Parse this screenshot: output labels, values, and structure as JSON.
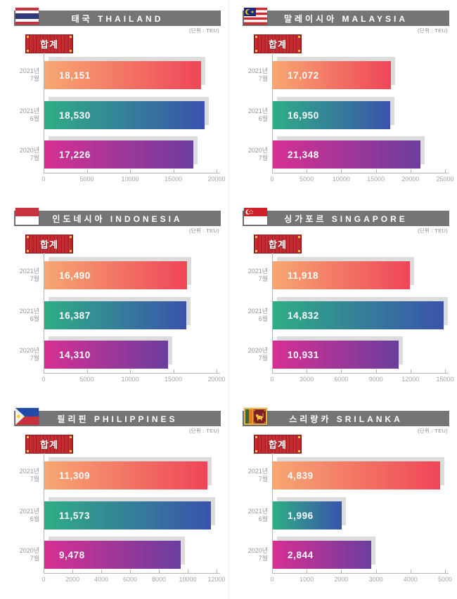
{
  "unit_label": "(단위 : TEU)",
  "total_badge_label": "합계",
  "colors": {
    "title_bar_bg": "#757575",
    "title_text": "#ffffff",
    "badge_bg": "#c1272d",
    "badge_border": "#8e1b20",
    "badge_corner_dot": "#f2c14b",
    "bar_shadow": "#dcdcdc",
    "axis_line": "#b5b5b5",
    "tick_label_text": "#a5a5a5",
    "category_label_text": "#969696",
    "value_text": "#ffffff"
  },
  "bar_gradients": [
    {
      "period": "2021-07",
      "from": "#f7a772",
      "to": "#ef4558"
    },
    {
      "period": "2021-06",
      "from": "#2fae85",
      "to": "#3a53ac"
    },
    {
      "period": "2020-07",
      "from": "#d72f92",
      "to": "#6b3e9e"
    }
  ],
  "row_labels": [
    {
      "line1": "2021년",
      "line2": "7월"
    },
    {
      "line1": "2021년",
      "line2": "6월"
    },
    {
      "line1": "2020년",
      "line2": "7월"
    }
  ],
  "chart_data": [
    {
      "type": "bar",
      "orientation": "horizontal",
      "title": "태국 THAILAND",
      "title_ko": "태국",
      "title_en": "THAILAND",
      "flag": "thailand",
      "categories": [
        "2021년 7월",
        "2021년 6월",
        "2020년 7월"
      ],
      "values": [
        18151,
        18530,
        17226
      ],
      "value_labels": [
        "18,151",
        "18,530",
        "17,226"
      ],
      "xlim": [
        0,
        20000
      ],
      "ticks": [
        0,
        5000,
        10000,
        15000,
        20000
      ],
      "tick_labels": [
        "0",
        "5000",
        "10000",
        "15000",
        "20000"
      ]
    },
    {
      "type": "bar",
      "orientation": "horizontal",
      "title": "말레이시아 MALAYSIA",
      "title_ko": "말레이시아",
      "title_en": "MALAYSIA",
      "flag": "malaysia",
      "categories": [
        "2021년 7월",
        "2021년 6월",
        "2020년 7월"
      ],
      "values": [
        17072,
        16950,
        21348
      ],
      "value_labels": [
        "17,072",
        "16,950",
        "21,348"
      ],
      "xlim": [
        0,
        25000
      ],
      "ticks": [
        0,
        5000,
        10000,
        15000,
        20000,
        25000
      ],
      "tick_labels": [
        "0",
        "5000",
        "10000",
        "15000",
        "20000",
        "25000"
      ]
    },
    {
      "type": "bar",
      "orientation": "horizontal",
      "title": "인도네시아 INDONESIA",
      "title_ko": "인도네시아",
      "title_en": "INDONESIA",
      "flag": "indonesia",
      "categories": [
        "2021년 7월",
        "2021년 6월",
        "2020년 7월"
      ],
      "values": [
        16490,
        16387,
        14310
      ],
      "value_labels": [
        "16,490",
        "16,387",
        "14,310"
      ],
      "xlim": [
        0,
        20000
      ],
      "ticks": [
        0,
        5000,
        10000,
        15000,
        20000
      ],
      "tick_labels": [
        "0",
        "5000",
        "10000",
        "15000",
        "20000"
      ]
    },
    {
      "type": "bar",
      "orientation": "horizontal",
      "title": "싱가포르 SINGAPORE",
      "title_ko": "싱가포르",
      "title_en": "SINGAPORE",
      "flag": "singapore",
      "categories": [
        "2021년 7월",
        "2021년 6월",
        "2020년 7월"
      ],
      "values": [
        11918,
        14832,
        10931
      ],
      "value_labels": [
        "11,918",
        "14,832",
        "10,931"
      ],
      "xlim": [
        0,
        15000
      ],
      "ticks": [
        0,
        3000,
        6000,
        9000,
        12000,
        15000
      ],
      "tick_labels": [
        "0",
        "3000",
        "6000",
        "9000",
        "12000",
        "15000"
      ]
    },
    {
      "type": "bar",
      "orientation": "horizontal",
      "title": "필리핀 PHILIPPINES",
      "title_ko": "필리핀",
      "title_en": "PHILIPPINES",
      "flag": "philippines",
      "categories": [
        "2021년 7월",
        "2021년 6월",
        "2020년 7월"
      ],
      "values": [
        11309,
        11573,
        9478
      ],
      "value_labels": [
        "11,309",
        "11,573",
        "9,478"
      ],
      "xlim": [
        0,
        12000
      ],
      "ticks": [
        0,
        2000,
        4000,
        6000,
        8000,
        10000,
        12000
      ],
      "tick_labels": [
        "0",
        "2000",
        "4000",
        "6000",
        "8000",
        "10000",
        "12000"
      ]
    },
    {
      "type": "bar",
      "orientation": "horizontal",
      "title": "스리랑카 SRILANKA",
      "title_ko": "스리랑카",
      "title_en": "SRILANKA",
      "flag": "srilanka",
      "categories": [
        "2021년 7월",
        "2021년 6월",
        "2020년 7월"
      ],
      "values": [
        4839,
        1996,
        2844
      ],
      "value_labels": [
        "4,839",
        "1,996",
        "2,844"
      ],
      "xlim": [
        0,
        5000
      ],
      "ticks": [
        0,
        1000,
        2000,
        3000,
        4000,
        5000
      ],
      "tick_labels": [
        "0",
        "1000",
        "2000",
        "3000",
        "4000",
        "5000"
      ]
    }
  ]
}
